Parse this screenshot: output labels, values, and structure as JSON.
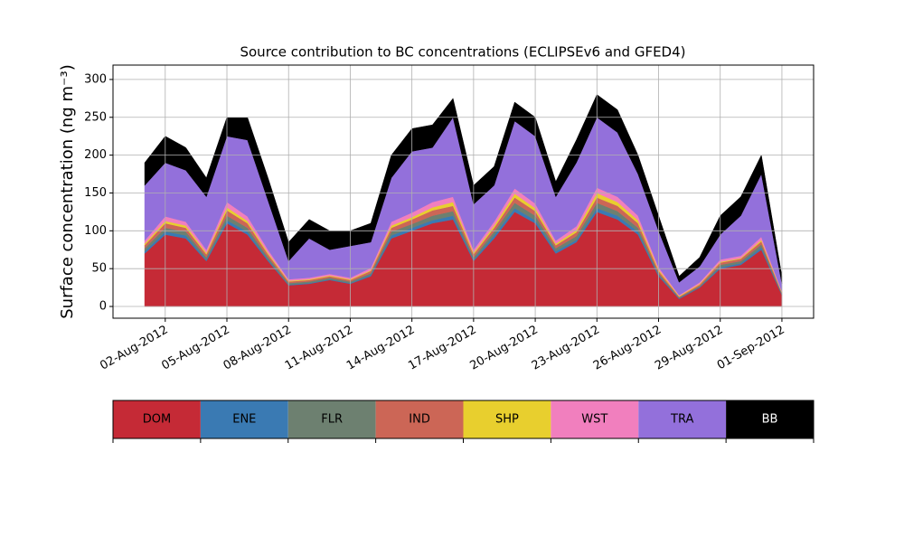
{
  "chart_data": {
    "type": "stackedarea",
    "title": "Source contribution to BC concentrations (ECLIPSEv6 and GFED4)",
    "y_label": "Surface concentration (ng m⁻³)",
    "x": [
      "2012-08-01",
      "2012-08-02",
      "2012-08-03",
      "2012-08-04",
      "2012-08-05",
      "2012-08-06",
      "2012-08-07",
      "2012-08-08",
      "2012-08-09",
      "2012-08-10",
      "2012-08-11",
      "2012-08-12",
      "2012-08-13",
      "2012-08-14",
      "2012-08-15",
      "2012-08-16",
      "2012-08-17",
      "2012-08-18",
      "2012-08-19",
      "2012-08-20",
      "2012-08-21",
      "2012-08-22",
      "2012-08-23",
      "2012-08-24",
      "2012-08-25",
      "2012-08-26",
      "2012-08-27",
      "2012-08-28",
      "2012-08-29",
      "2012-08-30",
      "2012-08-31",
      "2012-09-01"
    ],
    "series": [
      {
        "name": "DOM",
        "color": "#c52a36",
        "values": [
          70,
          95,
          90,
          60,
          110,
          95,
          60,
          28,
          30,
          35,
          30,
          40,
          90,
          100,
          110,
          115,
          60,
          90,
          125,
          110,
          70,
          85,
          125,
          115,
          95,
          40,
          10,
          25,
          50,
          55,
          75,
          15
        ]
      },
      {
        "name": "ENE",
        "color": "#3a7ab3",
        "values": [
          3,
          4,
          4,
          2,
          4,
          4,
          2,
          1,
          1,
          1,
          1,
          2,
          4,
          4,
          4,
          5,
          2,
          4,
          5,
          4,
          3,
          3,
          5,
          5,
          4,
          2,
          1,
          1,
          2,
          2,
          3,
          1
        ]
      },
      {
        "name": "FLR",
        "color": "#6d8070",
        "values": [
          4,
          5,
          5,
          3,
          6,
          5,
          3,
          2,
          2,
          2,
          2,
          2,
          5,
          5,
          6,
          6,
          3,
          5,
          7,
          6,
          4,
          5,
          7,
          6,
          5,
          2,
          1,
          1,
          3,
          3,
          4,
          1
        ]
      },
      {
        "name": "IND",
        "color": "#cc6656",
        "values": [
          4,
          6,
          5,
          4,
          7,
          6,
          4,
          2,
          2,
          2,
          2,
          3,
          5,
          6,
          7,
          7,
          4,
          5,
          7,
          6,
          4,
          5,
          7,
          7,
          6,
          3,
          1,
          2,
          3,
          3,
          4,
          1
        ]
      },
      {
        "name": "SHP",
        "color": "#e8cf2e",
        "values": [
          2,
          3,
          3,
          2,
          4,
          3,
          2,
          1,
          1,
          1,
          1,
          1,
          3,
          3,
          4,
          5,
          2,
          3,
          5,
          4,
          2,
          3,
          6,
          5,
          4,
          2,
          1,
          1,
          1,
          1,
          2,
          1
        ]
      },
      {
        "name": "WST",
        "color": "#f17fbe",
        "values": [
          4,
          6,
          5,
          4,
          7,
          6,
          4,
          2,
          2,
          2,
          2,
          3,
          5,
          6,
          7,
          7,
          4,
          5,
          7,
          6,
          4,
          5,
          7,
          7,
          6,
          3,
          1,
          2,
          3,
          3,
          4,
          1
        ]
      },
      {
        "name": "TRA",
        "color": "#9370db",
        "values": [
          73,
          71,
          68,
          70,
          87,
          101,
          65,
          24,
          52,
          32,
          42,
          34,
          58,
          81,
          72,
          105,
          60,
          48,
          89,
          89,
          58,
          84,
          93,
          85,
          55,
          48,
          17,
          21,
          33,
          53,
          83,
          10
        ]
      },
      {
        "name": "BB",
        "color": "#000000",
        "values": [
          30,
          35,
          30,
          25,
          25,
          30,
          30,
          25,
          25,
          25,
          20,
          25,
          30,
          30,
          30,
          25,
          25,
          25,
          25,
          25,
          20,
          30,
          30,
          30,
          25,
          20,
          8,
          12,
          25,
          25,
          25,
          10
        ]
      }
    ],
    "xlim": [
      "2012-07-30T11:00Z",
      "2012-09-02T13:00Z"
    ],
    "xticks": [
      {
        "value": "2012-08-02",
        "label": "02-Aug-2012"
      },
      {
        "value": "2012-08-05",
        "label": "05-Aug-2012"
      },
      {
        "value": "2012-08-08",
        "label": "08-Aug-2012"
      },
      {
        "value": "2012-08-11",
        "label": "11-Aug-2012"
      },
      {
        "value": "2012-08-14",
        "label": "14-Aug-2012"
      },
      {
        "value": "2012-08-17",
        "label": "17-Aug-2012"
      },
      {
        "value": "2012-08-20",
        "label": "20-Aug-2012"
      },
      {
        "value": "2012-08-23",
        "label": "23-Aug-2012"
      },
      {
        "value": "2012-08-26",
        "label": "26-Aug-2012"
      },
      {
        "value": "2012-08-29",
        "label": "29-Aug-2012"
      },
      {
        "value": "2012-09-01",
        "label": "01-Sep-2012"
      }
    ],
    "ylim": [
      -15.5,
      319
    ],
    "yticks": [
      0,
      50,
      100,
      150,
      200,
      250,
      300
    ],
    "grid": true,
    "legend": "below"
  }
}
